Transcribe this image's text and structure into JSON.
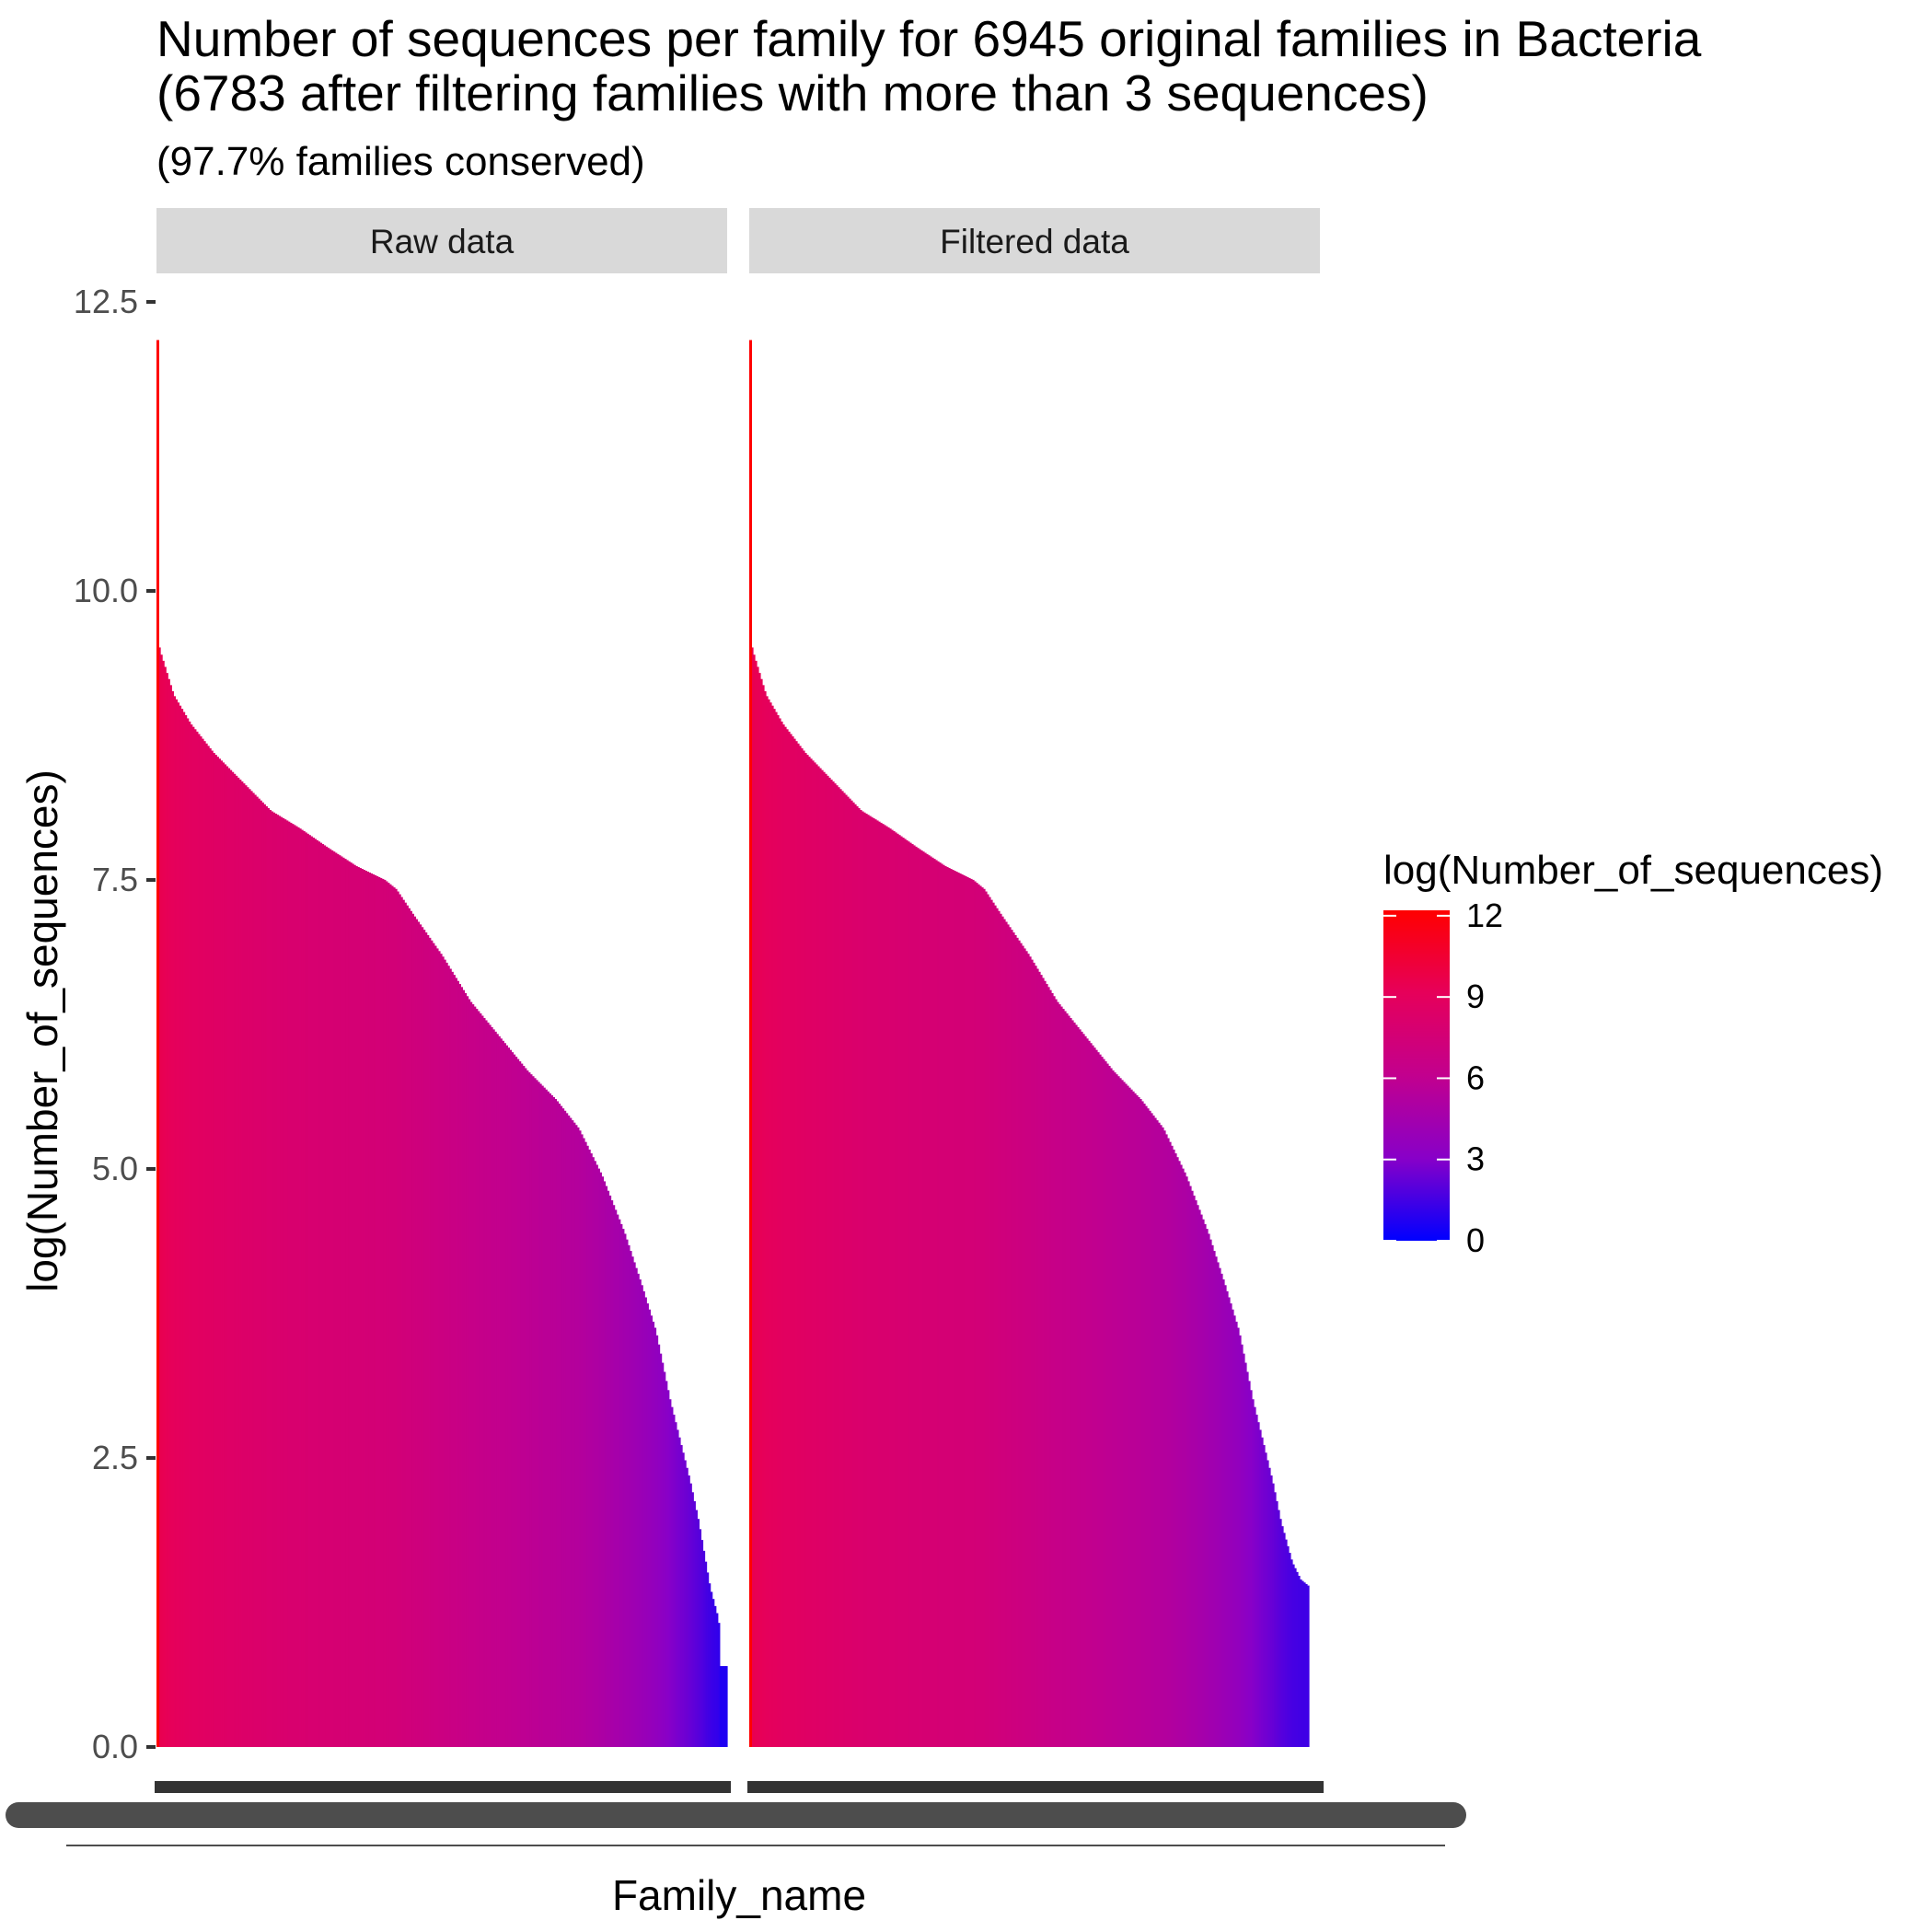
{
  "title_line1": "Number of sequences per family for 6945 original families in Bacteria",
  "title_line2": "(6783 after filtering families with more than 3 sequences)",
  "subtitle": "(97.7% families conserved)",
  "colors": {
    "low": "#0000FF",
    "high": "#FF0000",
    "strip": "#d9d9d9",
    "axis": "#333333"
  },
  "chart_data": {
    "type": "bar",
    "xlabel": "Family_name",
    "ylabel": "log(Number_of_sequences)",
    "ylim": [
      0,
      12.5
    ],
    "yticks": [
      0,
      2.5,
      5,
      7.5,
      10,
      12.5
    ],
    "ytick_labels": [
      "0.0",
      "2.5",
      "5.0",
      "7.5",
      "10.0",
      "12.5"
    ],
    "grid": false,
    "legend": {
      "title": "log(Number_of_sequences)",
      "position": "right",
      "breaks": [
        0,
        3,
        6,
        9,
        12
      ],
      "labels": [
        "0",
        "3",
        "6",
        "9",
        "12"
      ],
      "limits": [
        0,
        12.2
      ]
    },
    "panels": [
      {
        "name": "Raw data",
        "n_families": 6945,
        "profile": [
          [
            0,
            12.17
          ],
          [
            0.002,
            10.0
          ],
          [
            0.005,
            9.5
          ],
          [
            0.01,
            9.42
          ],
          [
            0.03,
            9.1
          ],
          [
            0.06,
            8.85
          ],
          [
            0.1,
            8.6
          ],
          [
            0.15,
            8.35
          ],
          [
            0.2,
            8.1
          ],
          [
            0.25,
            7.95
          ],
          [
            0.3,
            7.78
          ],
          [
            0.35,
            7.62
          ],
          [
            0.4,
            7.5
          ],
          [
            0.42,
            7.42
          ],
          [
            0.45,
            7.2
          ],
          [
            0.5,
            6.85
          ],
          [
            0.55,
            6.45
          ],
          [
            0.6,
            6.15
          ],
          [
            0.65,
            5.85
          ],
          [
            0.7,
            5.6
          ],
          [
            0.74,
            5.35
          ],
          [
            0.78,
            4.95
          ],
          [
            0.82,
            4.45
          ],
          [
            0.85,
            4.0
          ],
          [
            0.875,
            3.6
          ],
          [
            0.9,
            3.0
          ],
          [
            0.92,
            2.6
          ],
          [
            0.935,
            2.3
          ],
          [
            0.95,
            1.95
          ],
          [
            0.97,
            1.38
          ],
          [
            0.985,
            1.1
          ],
          [
            0.988,
            0.7
          ],
          [
            1.0,
            0.7
          ]
        ]
      },
      {
        "name": "Filtered data",
        "n_families": 6783,
        "profile": [
          [
            0,
            12.17
          ],
          [
            0.002,
            10.0
          ],
          [
            0.005,
            9.5
          ],
          [
            0.01,
            9.42
          ],
          [
            0.03,
            9.1
          ],
          [
            0.06,
            8.85
          ],
          [
            0.1,
            8.6
          ],
          [
            0.15,
            8.35
          ],
          [
            0.2,
            8.1
          ],
          [
            0.25,
            7.95
          ],
          [
            0.3,
            7.78
          ],
          [
            0.35,
            7.62
          ],
          [
            0.4,
            7.5
          ],
          [
            0.42,
            7.42
          ],
          [
            0.45,
            7.2
          ],
          [
            0.5,
            6.85
          ],
          [
            0.55,
            6.45
          ],
          [
            0.6,
            6.15
          ],
          [
            0.65,
            5.85
          ],
          [
            0.7,
            5.6
          ],
          [
            0.74,
            5.35
          ],
          [
            0.78,
            4.95
          ],
          [
            0.82,
            4.45
          ],
          [
            0.85,
            4.0
          ],
          [
            0.875,
            3.6
          ],
          [
            0.9,
            3.0
          ],
          [
            0.92,
            2.6
          ],
          [
            0.935,
            2.3
          ],
          [
            0.95,
            1.95
          ],
          [
            0.97,
            1.6
          ],
          [
            0.985,
            1.45
          ],
          [
            1.0,
            1.39
          ]
        ]
      }
    ]
  }
}
